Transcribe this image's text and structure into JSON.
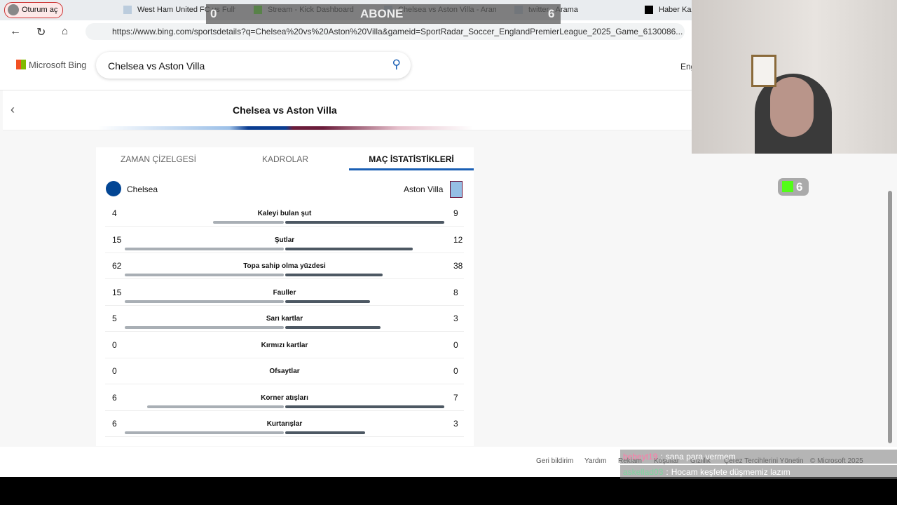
{
  "browser": {
    "profile": "Oturum aç",
    "tabs": [
      "West Ham United FC vs Fulham",
      "Stream - Kick Dashboard",
      "Chelsea vs Aston Villa - Arama",
      "twitter - Arama",
      "Haber Kart"
    ],
    "url": "https://www.bing.com/sportsdetails?q=Chelsea%20vs%20Aston%20Villa&gameid=SportRadar_Soccer_EnglandPremierLeague_2025_Game_6130086..."
  },
  "header": {
    "logo": "Microsoft Bing",
    "query": "Chelsea vs Aston Villa",
    "language": "Eng"
  },
  "page": {
    "title": "Chelsea vs Aston Villa",
    "tabs": [
      "ZAMAN ÇİZELGESİ",
      "KADROLAR",
      "MAÇ İSTATİSTİKLERİ"
    ],
    "home": "Chelsea",
    "away": "Aston Villa",
    "stats": [
      {
        "label": "Kaleyi bulan şut",
        "home": 4,
        "away": 9
      },
      {
        "label": "Şutlar",
        "home": 15,
        "away": 12
      },
      {
        "label": "Topa sahip olma yüzdesi",
        "home": 62,
        "away": 38
      },
      {
        "label": "Fauller",
        "home": 15,
        "away": 8
      },
      {
        "label": "Sarı kartlar",
        "home": 5,
        "away": 3
      },
      {
        "label": "Kırmızı kartlar",
        "home": 0,
        "away": 0
      },
      {
        "label": "Ofsaytlar",
        "home": 0,
        "away": 0
      },
      {
        "label": "Korner atışları",
        "home": 6,
        "away": 7
      },
      {
        "label": "Kurtarışlar",
        "home": 6,
        "away": 3
      }
    ]
  },
  "footer": [
    "Geri bildirim",
    "Yardım",
    "Reklam",
    "Koşullar",
    "Gizlilik",
    "Çerez Tercihlerini Yönetin",
    "© Microsoft 2025"
  ],
  "overlay": {
    "left": "0",
    "center": "ABONE",
    "right": "6",
    "kick_count": "6",
    "separator": ":",
    "chat": [
      {
        "user": "bebeyt19",
        "text": "sana para vermem"
      },
      {
        "user": "askellad03",
        "text": "Hocam keşfete düşmemiz lazım"
      }
    ]
  }
}
